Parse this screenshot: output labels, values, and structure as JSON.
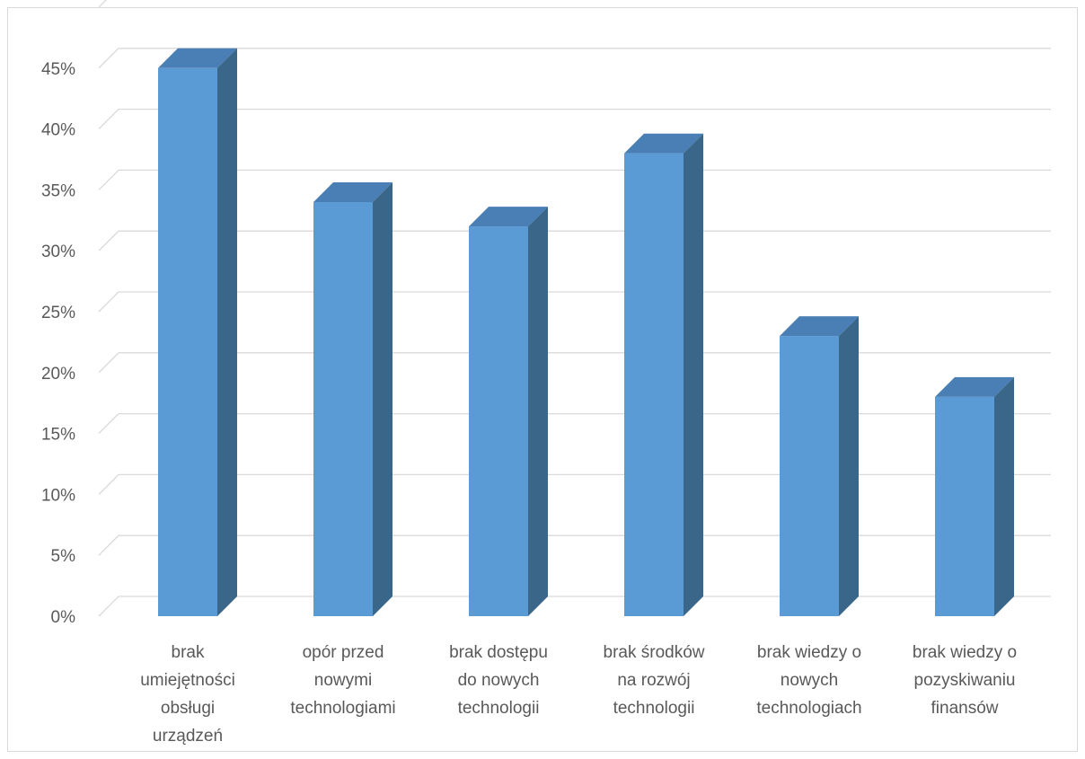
{
  "chart_data": {
    "type": "bar",
    "style": "3d-column",
    "categories": [
      [
        "brak",
        "umiejętności",
        "obsługi",
        "urządzeń"
      ],
      [
        "opór przed",
        "nowymi",
        "technologiami"
      ],
      [
        "brak dostępu",
        "do nowych",
        "technologii"
      ],
      [
        "brak środków",
        "na rozwój",
        "technologii"
      ],
      [
        "brak wiedzy o",
        "nowych",
        "technologiach"
      ],
      [
        "brak wiedzy o",
        "pozyskiwaniu",
        "finansów"
      ]
    ],
    "series": [
      {
        "values": [
          45,
          34,
          32,
          38,
          23,
          18
        ]
      }
    ],
    "value_format": "percent",
    "ylim": [
      0,
      45
    ],
    "yticks": [
      "0%",
      "5%",
      "10%",
      "15%",
      "20%",
      "25%",
      "30%",
      "35%",
      "40%",
      "45%"
    ],
    "title": "",
    "xlabel": "",
    "ylabel": "",
    "grid": true,
    "legend": "none",
    "colors": {
      "bar_front": "#5b9bd5",
      "bar_top": "#4a7fb5",
      "bar_side": "#3a6689",
      "grid": "#d9d9d9",
      "text": "#595959"
    }
  }
}
